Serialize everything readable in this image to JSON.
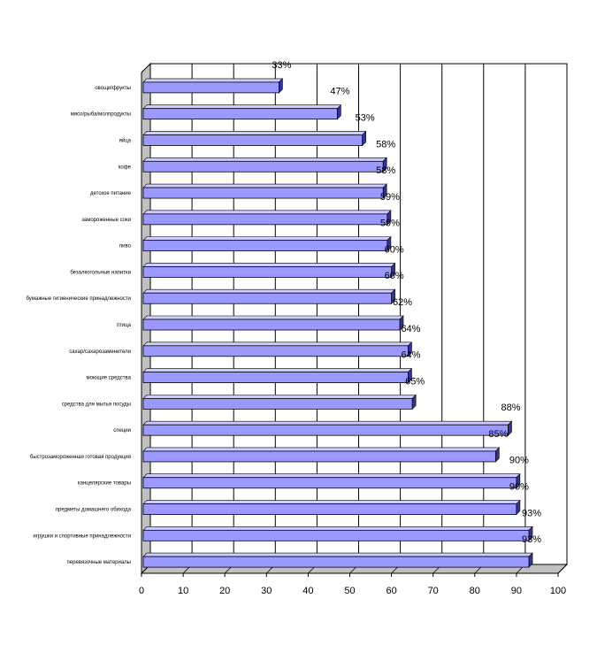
{
  "chart_data": {
    "type": "bar",
    "orientation": "horizontal",
    "three_d": true,
    "categories": [
      "овощи/фрукты",
      "мясо/рыба/молпродукты",
      "яйца",
      "кофе",
      "детское питание",
      "замороженные соки",
      "пиво",
      "безалкогольные напитки",
      "бумажные гигиенические принадлежности",
      "птица",
      "сахар/сахарозаменители",
      "моющие средства",
      "средства для мытья посуды",
      "специи",
      "быстрозамороженная готовая продукция",
      "канцелярские товары",
      "предметы домашнего обихода",
      "игрушки и спортивные принадлежности",
      "перевязочные материалы"
    ],
    "series": [
      {
        "values": [
          33,
          47,
          53,
          58,
          58,
          59,
          59,
          60,
          60,
          62,
          64,
          64,
          65,
          88,
          85,
          90,
          90,
          93,
          93
        ],
        "labels": [
          "33%",
          "47%",
          "53%",
          "58%",
          "58%",
          "59%",
          "59%",
          "60%",
          "60%",
          "62%",
          "64%",
          "64%",
          "65%",
          "88%",
          "85%",
          "90%",
          "90%",
          "93%",
          "93%"
        ]
      }
    ],
    "xlim": [
      0,
      100
    ],
    "xticks": [
      "0",
      "10",
      "20",
      "30",
      "40",
      "50",
      "60",
      "70",
      "80",
      "90",
      "100"
    ],
    "grid": true,
    "legend": "none",
    "colors": {
      "bar_front": "#9999ff",
      "bar_top": "#ccccff",
      "bar_side": "#333399",
      "floor": "#c0c0c0",
      "wall": "#ffffff"
    }
  }
}
